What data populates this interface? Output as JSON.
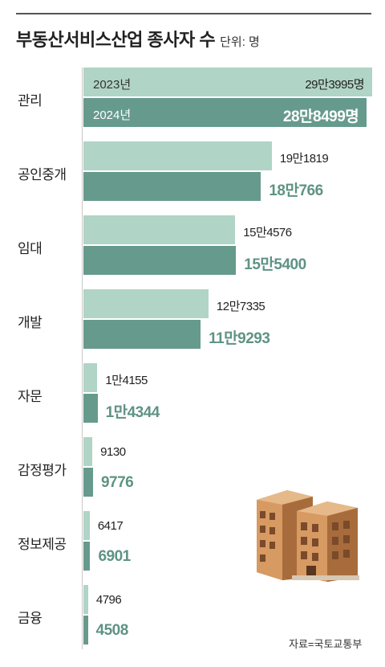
{
  "title": "부동산서비스산업 종사자 수",
  "unit": "단위: 명",
  "source": "자료=국토교통부",
  "colors": {
    "y2023": "#b0d4c6",
    "y2024": "#669a8d",
    "label2024": "#5f9384"
  },
  "chart_data": {
    "type": "bar",
    "orientation": "horizontal",
    "categories": [
      "관리",
      "공인중개",
      "임대",
      "개발",
      "자문",
      "감정평가",
      "정보제공",
      "금융"
    ],
    "series": [
      {
        "name": "2023년",
        "values": [
          293995,
          191819,
          154576,
          127335,
          14155,
          9130,
          6417,
          4796
        ],
        "labels": [
          "29만3995명",
          "19만1819",
          "15만4576",
          "12만7335",
          "1만4155",
          "9130",
          "6417",
          "4796"
        ]
      },
      {
        "name": "2024년",
        "values": [
          288499,
          180766,
          155400,
          119293,
          14344,
          9776,
          6901,
          4508
        ],
        "labels": [
          "28만8499명",
          "18만766",
          "15만5400",
          "11만9293",
          "1만4344",
          "9776",
          "6901",
          "4508"
        ]
      }
    ],
    "xlim": [
      0,
      293995
    ],
    "grid": false,
    "legend": "inline-first-category"
  }
}
